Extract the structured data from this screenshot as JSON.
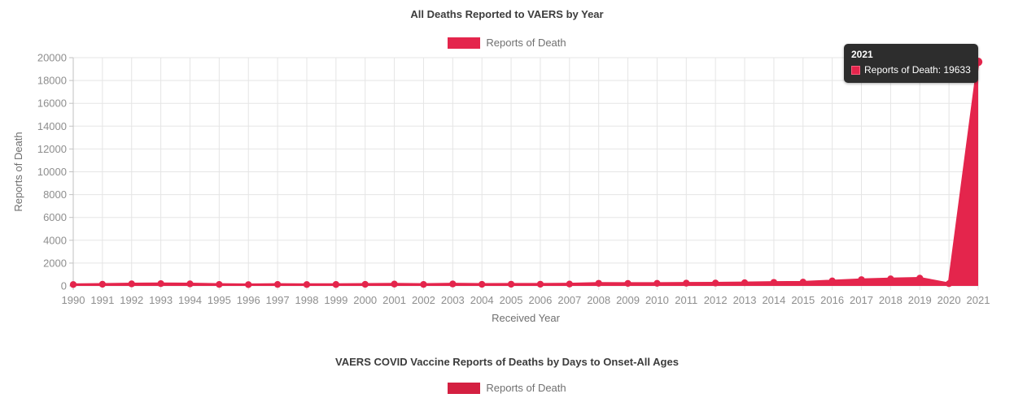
{
  "chart1": {
    "title": "All Deaths Reported to VAERS by Year",
    "legend_label": "Reports of Death",
    "tooltip": {
      "year": "2021",
      "label": "Reports of Death: 19633"
    }
  },
  "chart2": {
    "title": "VAERS COVID Vaccine Reports of Deaths by Days to Onset-All Ages",
    "legend_label": "Reports of Death"
  },
  "chart_data": [
    {
      "type": "area",
      "title": "All Deaths Reported to VAERS by Year",
      "xlabel": "Received Year",
      "ylabel": "Reports of Death",
      "legend": [
        "Reports of Death"
      ],
      "legend_position": "top",
      "grid": true,
      "color": "#e4254c",
      "x": [
        1990,
        1991,
        1992,
        1993,
        1994,
        1995,
        1996,
        1997,
        1998,
        1999,
        2000,
        2001,
        2002,
        2003,
        2004,
        2005,
        2006,
        2007,
        2008,
        2009,
        2010,
        2011,
        2012,
        2013,
        2014,
        2015,
        2016,
        2017,
        2018,
        2019,
        2020,
        2021
      ],
      "values": [
        120,
        145,
        180,
        200,
        180,
        130,
        110,
        130,
        120,
        125,
        140,
        160,
        130,
        170,
        140,
        150,
        150,
        165,
        230,
        220,
        225,
        240,
        250,
        280,
        310,
        330,
        440,
        550,
        620,
        680,
        200,
        19633
      ],
      "ylim": [
        0,
        20000
      ],
      "ytick_step": 2000
    },
    {
      "type": "area",
      "title": "VAERS COVID Vaccine Reports of Deaths by Days to Onset-All Ages",
      "legend": [
        "Reports of Death"
      ],
      "legend_position": "top",
      "color": "#d42041",
      "x": [],
      "values": []
    }
  ]
}
